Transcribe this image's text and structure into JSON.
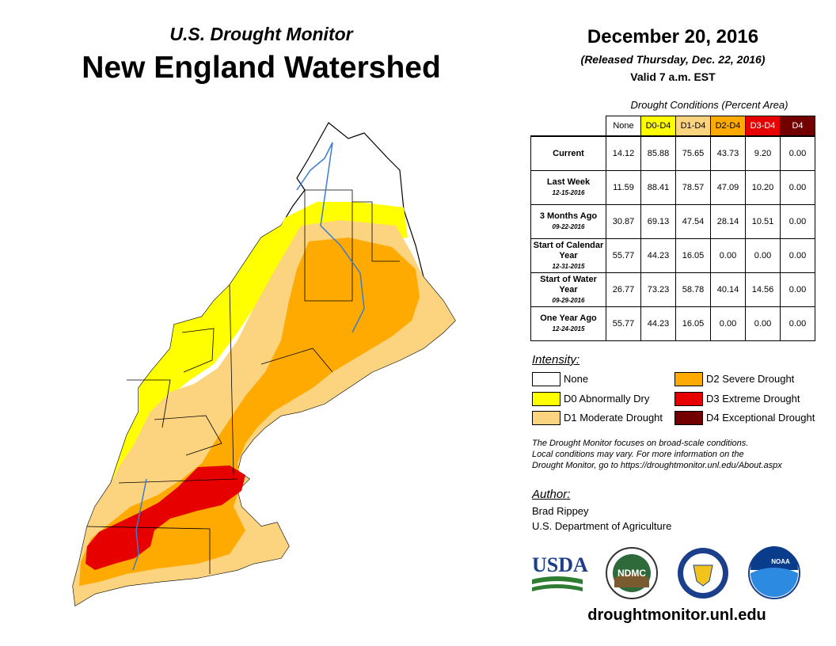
{
  "header": {
    "subtitle": "U.S. Drought Monitor",
    "title": "New England Watershed",
    "date": "December 20, 2016",
    "released": "(Released Thursday, Dec. 22, 2016)",
    "valid": "Valid 7 a.m. EST"
  },
  "table": {
    "caption": "Drought Conditions (Percent Area)",
    "columns": [
      "None",
      "D0-D4",
      "D1-D4",
      "D2-D4",
      "D3-D4",
      "D4"
    ],
    "column_colors": [
      "#ffffff",
      "#ffff00",
      "#fcd37f",
      "#ffaa00",
      "#e60000",
      "#730000"
    ],
    "rows": [
      {
        "label": "Current",
        "date": "",
        "values": [
          "14.12",
          "85.88",
          "75.65",
          "43.73",
          "9.20",
          "0.00"
        ]
      },
      {
        "label": "Last Week",
        "date": "12-15-2016",
        "values": [
          "11.59",
          "88.41",
          "78.57",
          "47.09",
          "10.20",
          "0.00"
        ]
      },
      {
        "label": "3 Months Ago",
        "date": "09-22-2016",
        "values": [
          "30.87",
          "69.13",
          "47.54",
          "28.14",
          "10.51",
          "0.00"
        ]
      },
      {
        "label": "Start of Calendar Year",
        "date": "12-31-2015",
        "values": [
          "55.77",
          "44.23",
          "16.05",
          "0.00",
          "0.00",
          "0.00"
        ]
      },
      {
        "label": "Start of Water Year",
        "date": "09-29-2016",
        "values": [
          "26.77",
          "73.23",
          "58.78",
          "40.14",
          "14.56",
          "0.00"
        ]
      },
      {
        "label": "One Year Ago",
        "date": "12-24-2015",
        "values": [
          "55.77",
          "44.23",
          "16.05",
          "0.00",
          "0.00",
          "0.00"
        ]
      }
    ]
  },
  "legend": {
    "title": "Intensity:",
    "items": [
      {
        "label": "None",
        "color": "#ffffff"
      },
      {
        "label": "D0 Abnormally Dry",
        "color": "#ffff00"
      },
      {
        "label": "D1 Moderate Drought",
        "color": "#fcd37f"
      },
      {
        "label": "D2 Severe Drought",
        "color": "#ffaa00"
      },
      {
        "label": "D3 Extreme Drought",
        "color": "#e60000"
      },
      {
        "label": "D4 Exceptional Drought",
        "color": "#730000"
      }
    ]
  },
  "note": {
    "line1": "The Drought Monitor focuses on broad-scale conditions.",
    "line2": "Local conditions may vary. For more information on the",
    "line3": "Drought Monitor, go to https://droughtmonitor.unl.edu/About.aspx"
  },
  "author": {
    "title": "Author:",
    "name": "Brad Rippey",
    "org": "U.S. Department of Agriculture"
  },
  "logos": {
    "usda": "USDA",
    "ndmc": "NDMC",
    "noaa": "NOAA"
  },
  "url": "droughtmonitor.unl.edu"
}
